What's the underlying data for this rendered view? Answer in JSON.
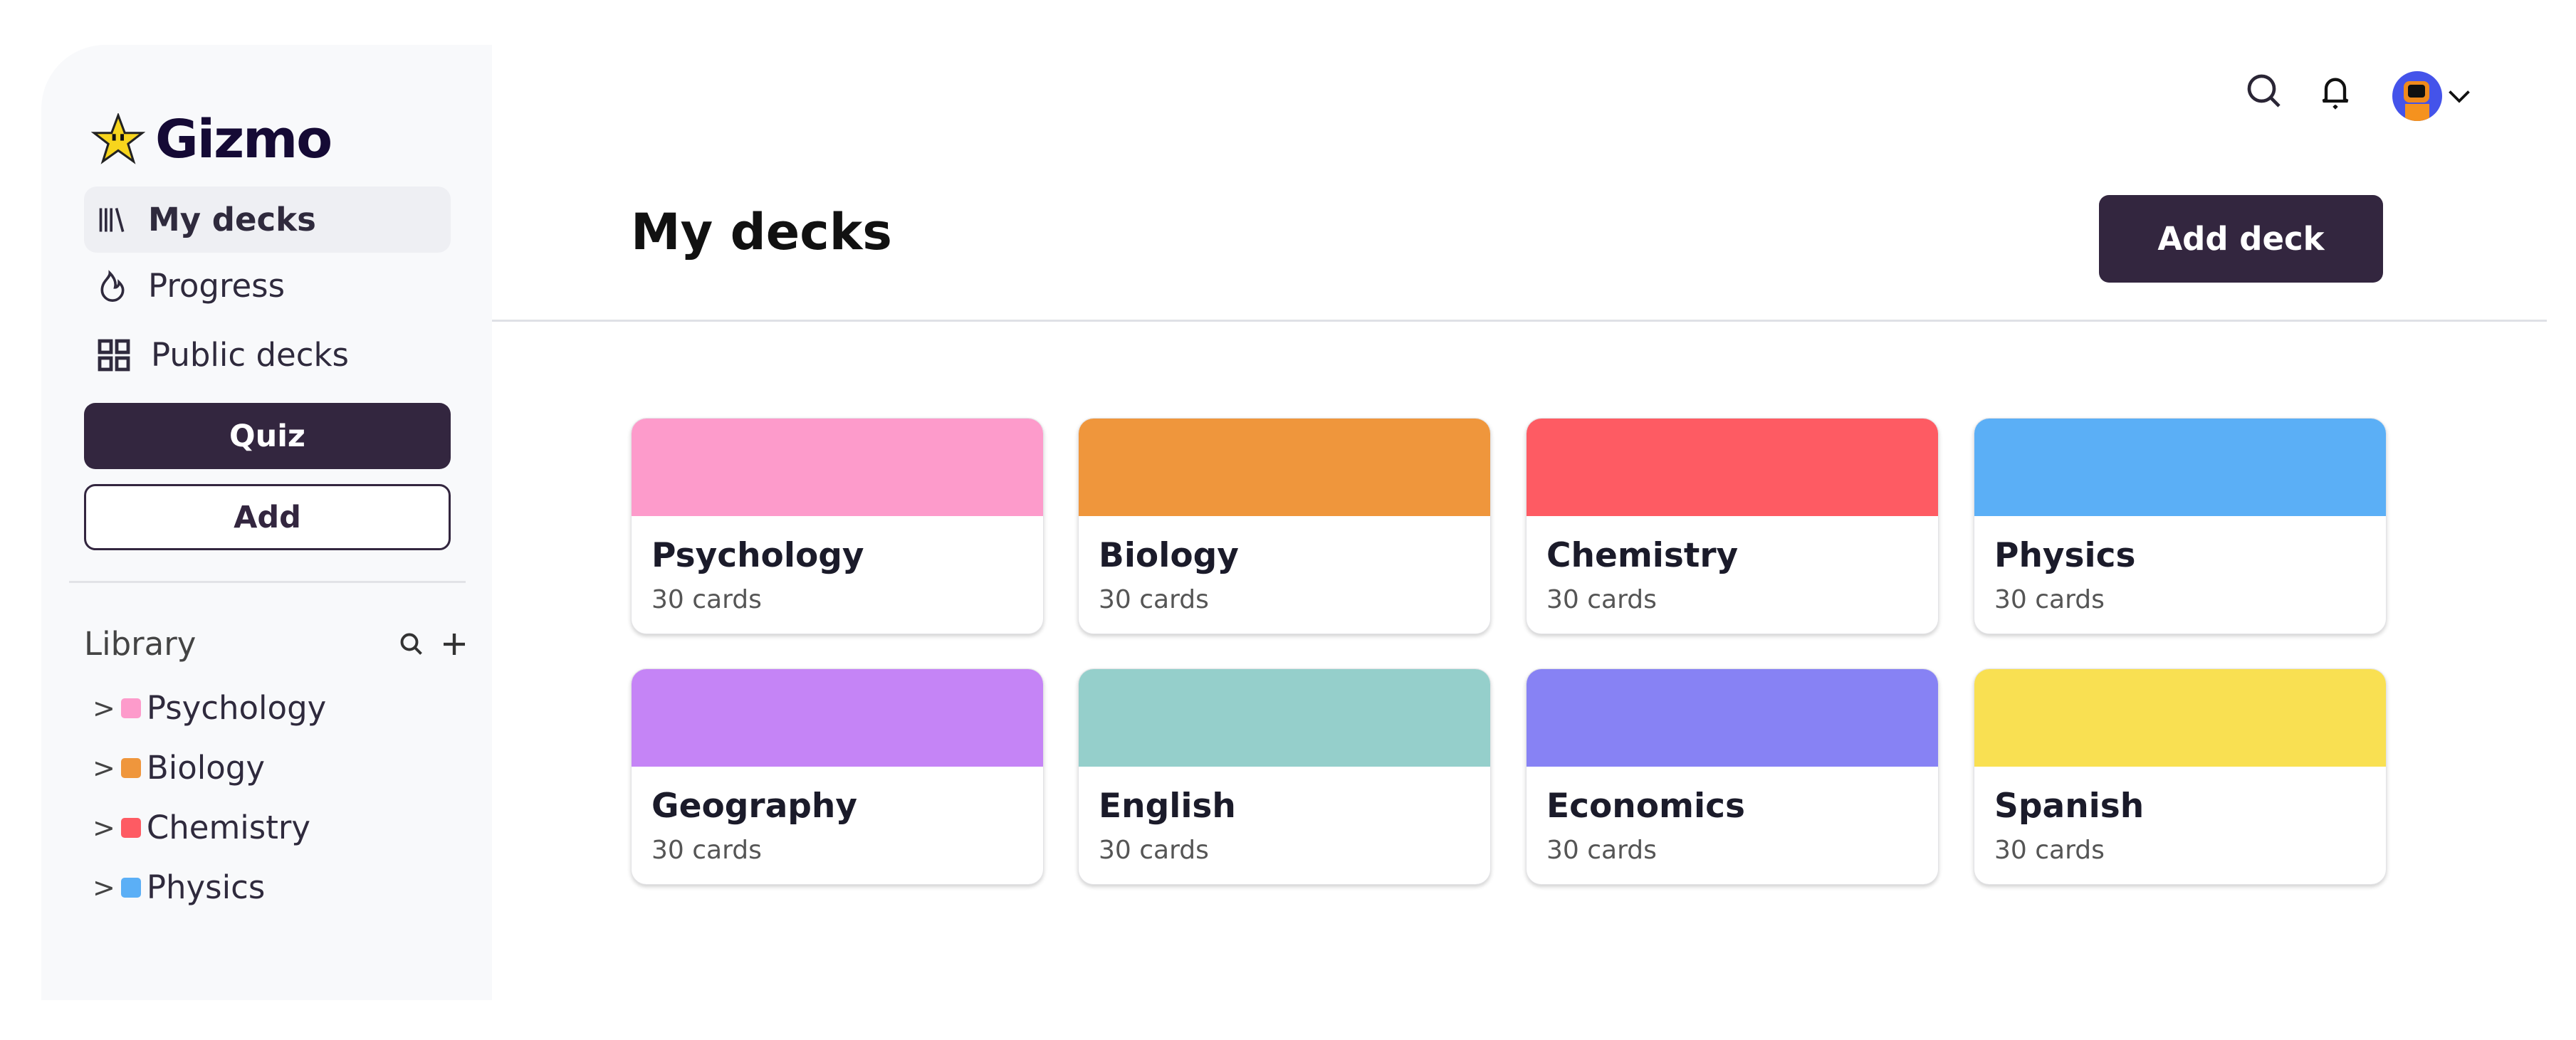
{
  "app": {
    "name": "Gizmo"
  },
  "sidebar": {
    "nav": [
      {
        "label": "My decks",
        "icon": "library-icon",
        "active": true
      },
      {
        "label": "Progress",
        "icon": "flame-icon"
      },
      {
        "label": "Public decks",
        "icon": "grid-icon"
      }
    ],
    "quiz_label": "Quiz",
    "add_label": "Add",
    "library": {
      "title": "Library",
      "items": [
        {
          "label": "Psychology",
          "color": "#fd9bcb"
        },
        {
          "label": "Biology",
          "color": "#ef963c"
        },
        {
          "label": "Chemistry",
          "color": "#fe5b63"
        },
        {
          "label": "Physics",
          "color": "#5baff6"
        }
      ]
    }
  },
  "header": {
    "icons": [
      "search-icon",
      "bell-icon",
      "avatar",
      "chevron-down-icon"
    ]
  },
  "main": {
    "title": "My decks",
    "add_deck_label": "Add deck",
    "decks": [
      {
        "name": "Psychology",
        "count": "30 cards",
        "color": "#fd9bcb"
      },
      {
        "name": "Biology",
        "count": "30 cards",
        "color": "#ef963c"
      },
      {
        "name": "Chemistry",
        "count": "30 cards",
        "color": "#fe5b63"
      },
      {
        "name": "Physics",
        "count": "30 cards",
        "color": "#5baff6"
      },
      {
        "name": "Geography",
        "count": "30 cards",
        "color": "#c584f6"
      },
      {
        "name": "English",
        "count": "30 cards",
        "color": "#95cfcb"
      },
      {
        "name": "Economics",
        "count": "30 cards",
        "color": "#8782f4"
      },
      {
        "name": "Spanish",
        "count": "30 cards",
        "color": "#f9e052"
      }
    ]
  },
  "colors": {
    "primary": "#33263f"
  }
}
